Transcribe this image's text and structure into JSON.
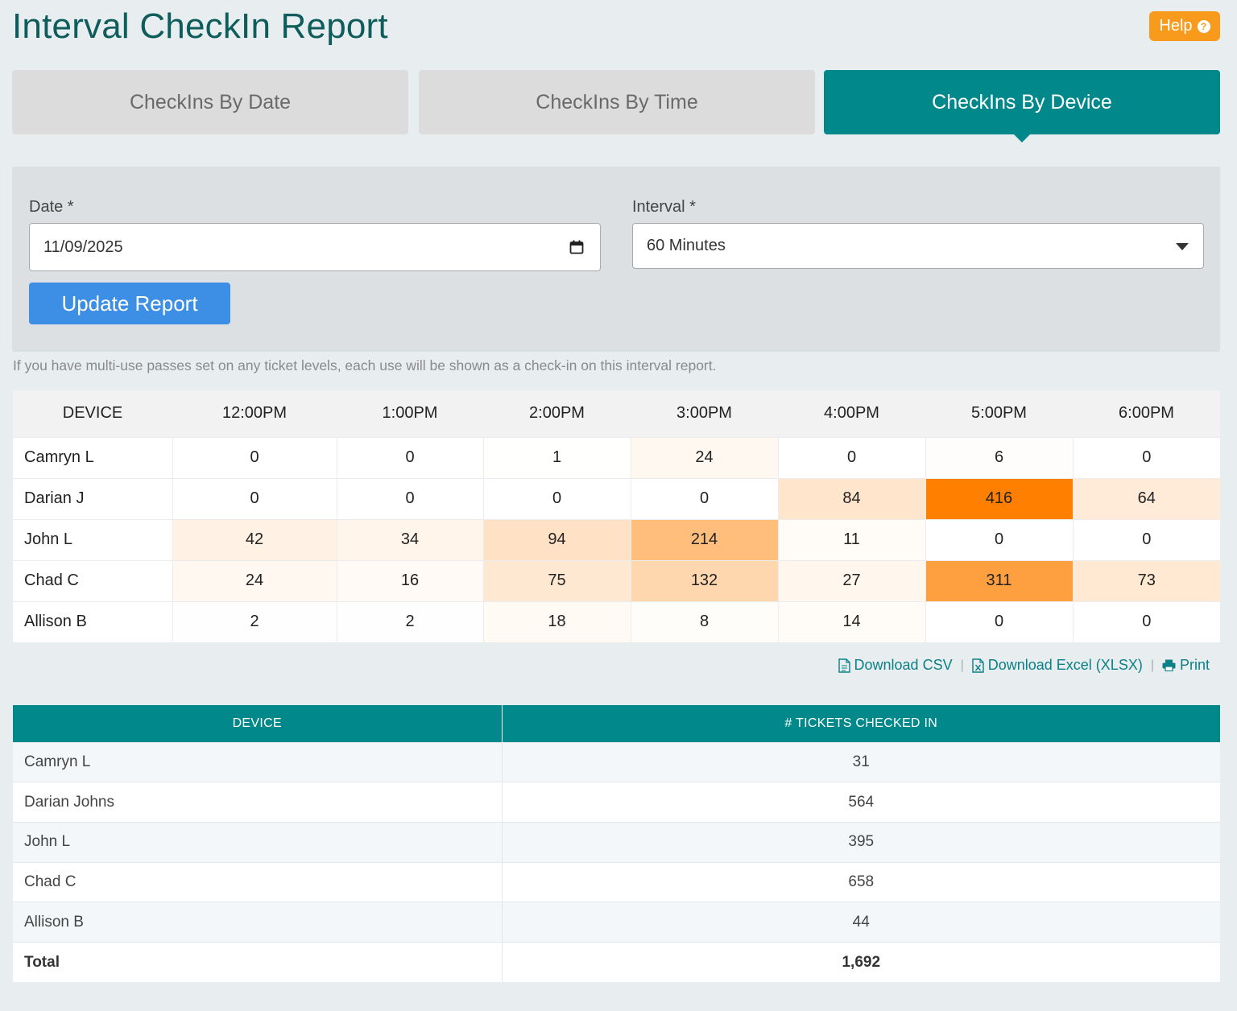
{
  "title": "Interval CheckIn Report",
  "help": {
    "label": "Help",
    "icon": "question-circle-icon"
  },
  "tabs": [
    {
      "label": "CheckIns By Date",
      "active": false
    },
    {
      "label": "CheckIns By Time",
      "active": false
    },
    {
      "label": "CheckIns By Device",
      "active": true
    }
  ],
  "filters": {
    "date_label": "Date *",
    "date_value": "11/09/2025",
    "interval_label": "Interval *",
    "interval_value": "60 Minutes",
    "update_button": "Update Report"
  },
  "note": "If you have multi-use passes set on any ticket levels, each use will be shown as a check-in on this interval report.",
  "heatmap": {
    "columns": [
      "DEVICE",
      "12:00PM",
      "1:00PM",
      "2:00PM",
      "3:00PM",
      "4:00PM",
      "5:00PM",
      "6:00PM"
    ],
    "rows": [
      {
        "device": "Camryn L",
        "values": [
          0,
          0,
          1,
          24,
          0,
          6,
          0
        ]
      },
      {
        "device": "Darian J",
        "values": [
          0,
          0,
          0,
          0,
          84,
          416,
          64
        ]
      },
      {
        "device": "John L",
        "values": [
          42,
          34,
          94,
          214,
          11,
          0,
          0
        ]
      },
      {
        "device": "Chad C",
        "values": [
          24,
          16,
          75,
          132,
          27,
          311,
          73
        ]
      },
      {
        "device": "Allison B",
        "values": [
          2,
          2,
          18,
          8,
          14,
          0,
          0
        ]
      }
    ],
    "max_color": "#ff8000"
  },
  "downloads": {
    "csv": "Download CSV",
    "excel": "Download Excel (XLSX)",
    "print": "Print"
  },
  "summary": {
    "columns": [
      "DEVICE",
      "# TICKETS CHECKED IN"
    ],
    "rows": [
      {
        "device": "Camryn L",
        "count": "31"
      },
      {
        "device": "Darian Johns",
        "count": "564"
      },
      {
        "device": "John L",
        "count": "395"
      },
      {
        "device": "Chad C",
        "count": "658"
      },
      {
        "device": "Allison B",
        "count": "44"
      }
    ],
    "total_label": "Total",
    "total_value": "1,692"
  },
  "colors": {
    "accent": "#00888a",
    "title": "#0f5c5c",
    "help": "#f89a1c",
    "button": "#3d8fe6"
  }
}
